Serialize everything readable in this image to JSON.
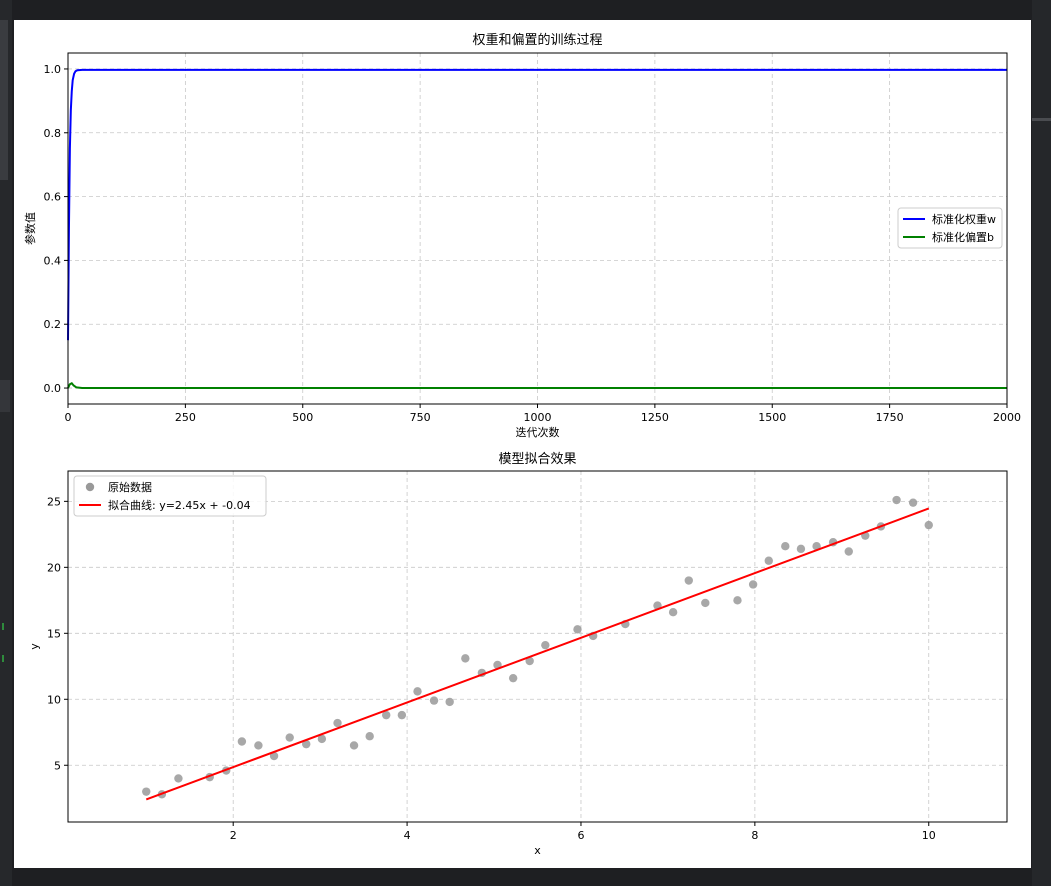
{
  "chart_data": [
    {
      "type": "line",
      "title": "权重和偏置的训练过程",
      "xlabel": "迭代次数",
      "ylabel": "参数值",
      "xlim": [
        0,
        2000
      ],
      "ylim": [
        -0.05,
        1.05
      ],
      "xticks": [
        0,
        250,
        500,
        750,
        1000,
        1250,
        1500,
        1750,
        2000
      ],
      "yticks": [
        0.0,
        0.2,
        0.4,
        0.6,
        0.8,
        1.0
      ],
      "xtick_labels": [
        "0",
        "250",
        "500",
        "750",
        "1000",
        "1250",
        "1500",
        "1750",
        "2000"
      ],
      "ytick_labels": [
        "0.0",
        "0.2",
        "0.4",
        "0.6",
        "0.8",
        "1.0"
      ],
      "grid": true,
      "legend_position": "center-right",
      "series": [
        {
          "name": "标准化权重w",
          "color": "#0000ff",
          "points": [
            [
              0,
              0.15
            ],
            [
              2,
              0.5
            ],
            [
              4,
              0.75
            ],
            [
              6,
              0.87
            ],
            [
              8,
              0.93
            ],
            [
              10,
              0.965
            ],
            [
              13,
              0.985
            ],
            [
              16,
              0.993
            ],
            [
              20,
              0.996
            ],
            [
              30,
              0.997
            ],
            [
              2000,
              0.997
            ]
          ]
        },
        {
          "name": "标准化偏置b",
          "color": "#008000",
          "points": [
            [
              0,
              0.0
            ],
            [
              4,
              0.012
            ],
            [
              8,
              0.015
            ],
            [
              12,
              0.008
            ],
            [
              18,
              0.002
            ],
            [
              30,
              0.0
            ],
            [
              2000,
              0.0
            ]
          ]
        }
      ]
    },
    {
      "type": "scatter",
      "title": "模型拟合效果",
      "xlabel": "x",
      "ylabel": "y",
      "xlim": [
        0.1,
        10.9
      ],
      "ylim": [
        0.7,
        27.3
      ],
      "xticks": [
        2,
        4,
        6,
        8,
        10
      ],
      "yticks": [
        5,
        10,
        15,
        20,
        25
      ],
      "xtick_labels": [
        "2",
        "4",
        "6",
        "8",
        "10"
      ],
      "ytick_labels": [
        "5",
        "10",
        "15",
        "20",
        "25"
      ],
      "grid": true,
      "legend_position": "top-left",
      "series": [
        {
          "name": "原始数据",
          "kind": "scatter",
          "color": "#999999",
          "x": [
            1.0,
            1.18,
            1.37,
            1.73,
            1.92,
            2.1,
            2.29,
            2.47,
            2.65,
            2.84,
            3.02,
            3.2,
            3.39,
            3.57,
            3.76,
            3.94,
            4.12,
            4.31,
            4.49,
            4.67,
            4.86,
            5.04,
            5.22,
            5.41,
            5.59,
            5.96,
            6.14,
            6.51,
            6.88,
            7.06,
            7.24,
            7.43,
            7.8,
            7.98,
            8.16,
            8.35,
            8.53,
            8.71,
            8.9,
            9.08,
            9.27,
            9.45,
            9.63,
            9.82,
            10.0
          ],
          "y": [
            3.0,
            2.8,
            4.0,
            4.1,
            4.6,
            6.8,
            6.5,
            5.7,
            7.1,
            6.6,
            7.0,
            8.2,
            6.5,
            7.2,
            8.8,
            8.8,
            10.6,
            9.9,
            9.8,
            13.1,
            12.0,
            12.6,
            11.6,
            12.9,
            14.1,
            15.3,
            14.8,
            15.7,
            17.1,
            16.6,
            19.0,
            17.3,
            17.5,
            18.7,
            20.5,
            21.6,
            21.4,
            21.6,
            21.9,
            21.2,
            22.4,
            23.1,
            25.1,
            24.9,
            23.2
          ]
        },
        {
          "name": "拟合曲线: y=2.45x + -0.04",
          "kind": "line",
          "color": "#ff0000",
          "x": [
            1.0,
            10.0
          ],
          "y": [
            2.41,
            24.46
          ]
        }
      ]
    }
  ]
}
